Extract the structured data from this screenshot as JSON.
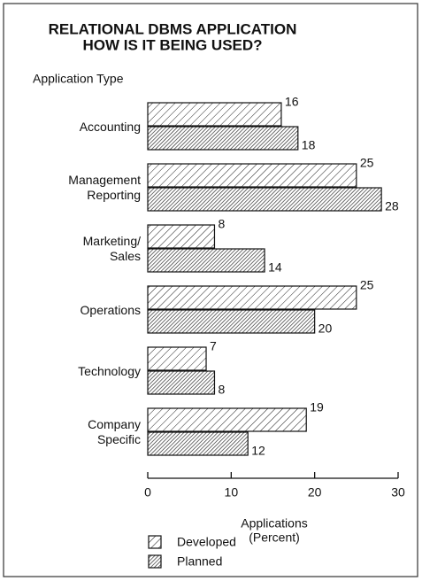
{
  "chart_data": {
    "type": "bar",
    "orientation": "horizontal",
    "title": "RELATIONAL DBMS APPLICATION",
    "subtitle": "HOW IS IT BEING USED?",
    "y_label": "Application Type",
    "x_label": "Applications",
    "x_label_unit": "(Percent)",
    "categories": [
      "Accounting",
      "Management\nReporting",
      "Marketing/\nSales",
      "Operations",
      "Technology",
      "Company\nSpecific"
    ],
    "series": [
      {
        "name": "Developed",
        "values": [
          16,
          25,
          8,
          25,
          7,
          19
        ]
      },
      {
        "name": "Planned",
        "values": [
          18,
          28,
          14,
          20,
          8,
          12
        ]
      }
    ],
    "xlim": [
      0,
      30
    ],
    "xticks": [
      0,
      10,
      20,
      30
    ]
  }
}
